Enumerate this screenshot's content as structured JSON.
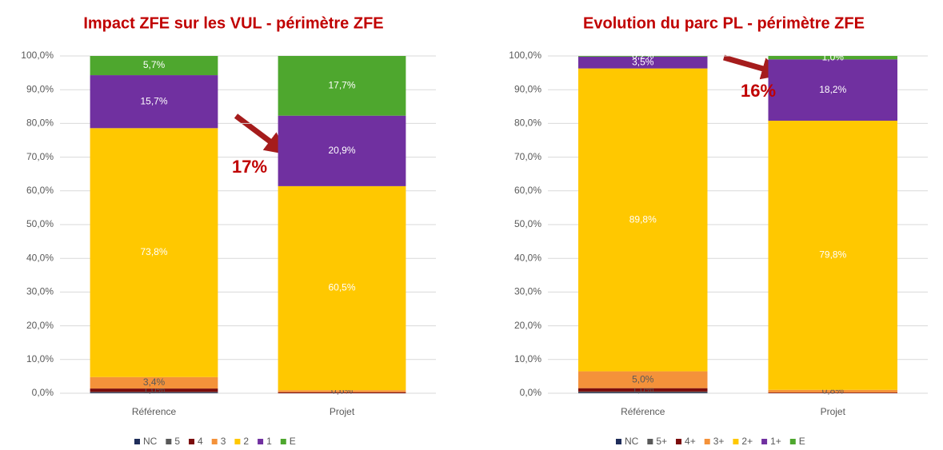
{
  "chart_data": [
    {
      "type": "stacked_bar",
      "title": "Impact ZFE sur les VUL - périmètre ZFE",
      "categories": [
        "Référence",
        "Projet"
      ],
      "series": [
        {
          "name": "NC",
          "color": "#1f2d5a",
          "values": [
            0.2,
            0
          ],
          "value_labels": [
            null,
            null
          ]
        },
        {
          "name": "5",
          "color": "#595959",
          "values": [
            0.2,
            0
          ],
          "value_labels": [
            null,
            null
          ]
        },
        {
          "name": "4",
          "color": "#7b0c0c",
          "values": [
            1.0,
            0.3
          ],
          "value_labels": [
            "1,0%",
            null
          ]
        },
        {
          "name": "3",
          "color": "#f4923a",
          "values": [
            3.4,
            0.6
          ],
          "value_labels": [
            "3,4%",
            "0,6%"
          ]
        },
        {
          "name": "2",
          "color": "#ffc800",
          "values": [
            73.8,
            60.5
          ],
          "value_labels": [
            "73,8%",
            "60,5%"
          ]
        },
        {
          "name": "1",
          "color": "#7030a0",
          "values": [
            15.7,
            20.9
          ],
          "value_labels": [
            "15,7%",
            "20,9%"
          ]
        },
        {
          "name": "E",
          "color": "#4ea72e",
          "values": [
            5.7,
            17.7
          ],
          "value_labels": [
            "5,7%",
            "17,7%"
          ]
        }
      ],
      "ylim": [
        0,
        100
      ],
      "yticks": [
        {
          "value": 0,
          "label": "0,0%"
        },
        {
          "value": 10,
          "label": "10,0%"
        },
        {
          "value": 20,
          "label": "20,0%"
        },
        {
          "value": 30,
          "label": "30,0%"
        },
        {
          "value": 40,
          "label": "40,0%"
        },
        {
          "value": 50,
          "label": "50,0%"
        },
        {
          "value": 60,
          "label": "60,0%"
        },
        {
          "value": 70,
          "label": "70,0%"
        },
        {
          "value": 80,
          "label": "80,0%"
        },
        {
          "value": 90,
          "label": "90,0%"
        },
        {
          "value": 100,
          "label": "100,0%"
        }
      ],
      "grid": true,
      "annotation": "17%"
    },
    {
      "type": "stacked_bar",
      "title": "Evolution du parc PL - périmètre ZFE",
      "categories": [
        "Référence",
        "Projet"
      ],
      "series": [
        {
          "name": "NC",
          "color": "#1f2d5a",
          "values": [
            0.2,
            0
          ],
          "value_labels": [
            null,
            null
          ]
        },
        {
          "name": "5+",
          "color": "#595959",
          "values": [
            0.3,
            0
          ],
          "value_labels": [
            null,
            null
          ]
        },
        {
          "name": "4+",
          "color": "#7b0c0c",
          "values": [
            1.0,
            0.2
          ],
          "value_labels": [
            "1,0%",
            null
          ]
        },
        {
          "name": "3+",
          "color": "#f4923a",
          "values": [
            5.0,
            0.8
          ],
          "value_labels": [
            "5,0%",
            "0,8%"
          ]
        },
        {
          "name": "2+",
          "color": "#ffc800",
          "values": [
            89.8,
            79.8
          ],
          "value_labels": [
            "89,8%",
            "79,8%"
          ]
        },
        {
          "name": "1+",
          "color": "#7030a0",
          "values": [
            3.5,
            18.2
          ],
          "value_labels": [
            "3,5%",
            "18,2%"
          ]
        },
        {
          "name": "E",
          "color": "#4ea72e",
          "values": [
            0.2,
            1.0
          ],
          "value_labels": [
            "0,2%",
            "1,0%"
          ]
        }
      ],
      "ylim": [
        0,
        100
      ],
      "yticks": [
        {
          "value": 0,
          "label": "0,0%"
        },
        {
          "value": 10,
          "label": "10,0%"
        },
        {
          "value": 20,
          "label": "20,0%"
        },
        {
          "value": 30,
          "label": "30,0%"
        },
        {
          "value": 40,
          "label": "40,0%"
        },
        {
          "value": 50,
          "label": "50,0%"
        },
        {
          "value": 60,
          "label": "60,0%"
        },
        {
          "value": 70,
          "label": "70,0%"
        },
        {
          "value": 80,
          "label": "80,0%"
        },
        {
          "value": 90,
          "label": "90,0%"
        },
        {
          "value": 100,
          "label": "100,0%"
        }
      ],
      "grid": true,
      "annotation": "16%"
    }
  ]
}
